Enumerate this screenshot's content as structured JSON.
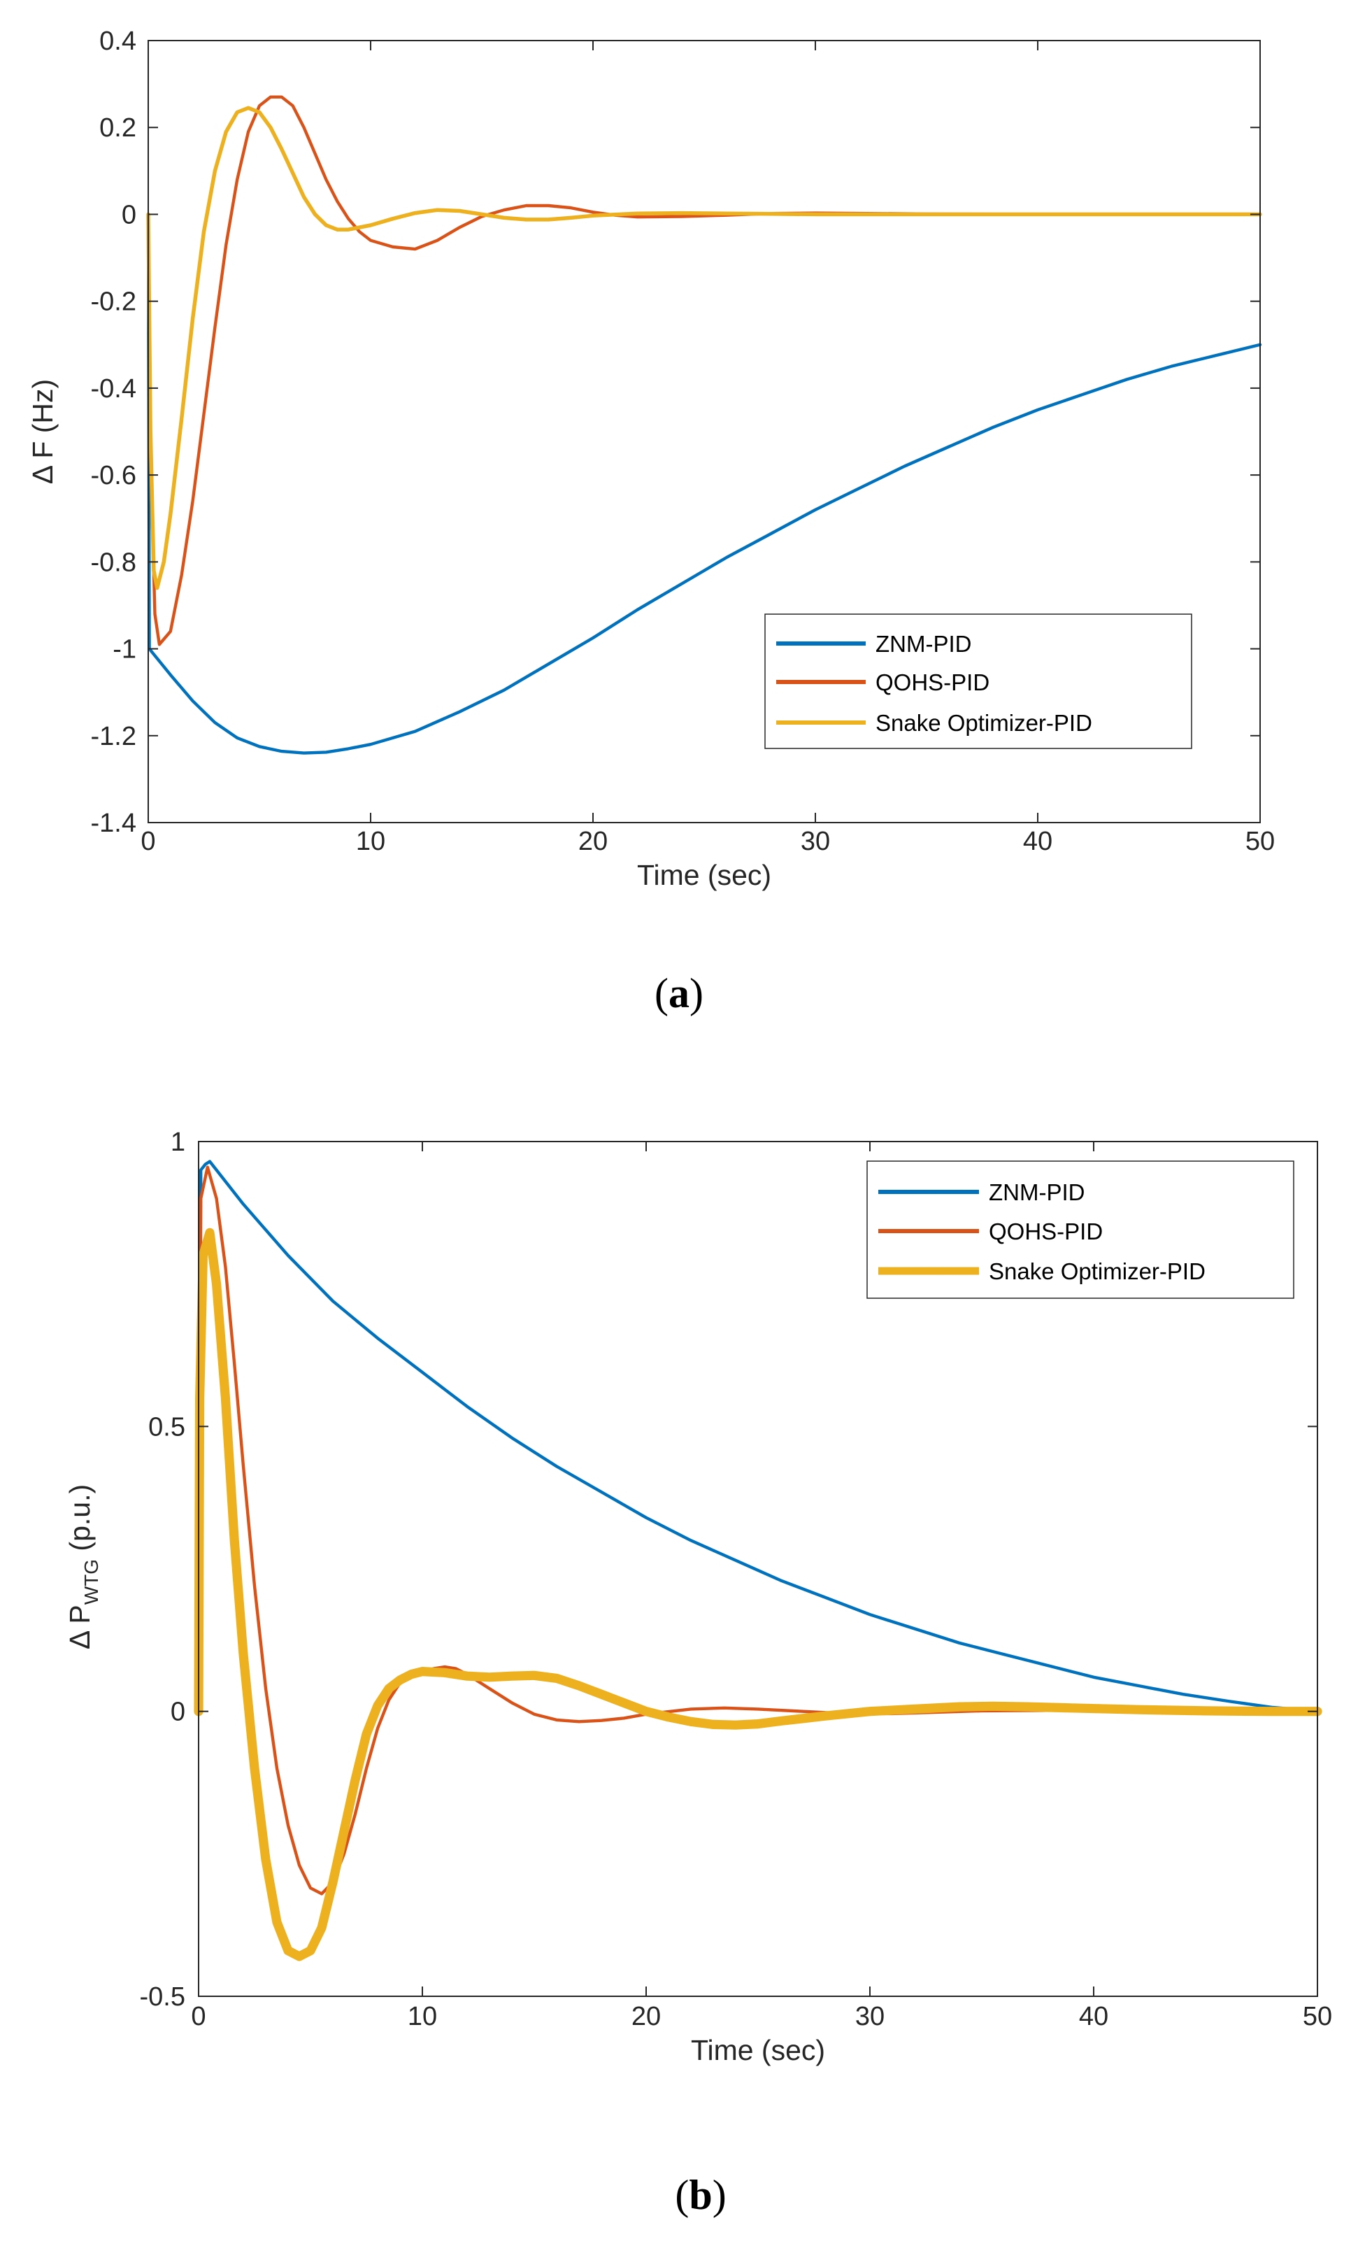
{
  "chart_data": [
    {
      "type": "line",
      "panel_label": "a",
      "xlabel": "Time (sec)",
      "ylabel": "Δ F (Hz)",
      "xlim": [
        0,
        50
      ],
      "ylim": [
        -1.4,
        0.4
      ],
      "xticks": [
        0,
        10,
        20,
        30,
        40,
        50
      ],
      "yticks": [
        -1.4,
        -1.2,
        -1,
        -0.8,
        -0.6,
        -0.4,
        -0.2,
        0,
        0.2,
        0.4
      ],
      "ytick_labels": [
        "-1.4",
        "-1.2",
        "-1",
        "-0.8",
        "-0.6",
        "-0.4",
        "-0.2",
        "0",
        "0.2",
        "0.4"
      ],
      "legend_position": "bottom-right",
      "series": [
        {
          "name": "ZNM-PID",
          "color": "#0072BD",
          "width": 2,
          "x": [
            0,
            0.05,
            1,
            2,
            3,
            4,
            5,
            6,
            7,
            8,
            9,
            10,
            12,
            14,
            16,
            18,
            20,
            22,
            24,
            26,
            28,
            30,
            32,
            34,
            36,
            38,
            40,
            42,
            44,
            46,
            48,
            50
          ],
          "y": [
            0,
            -1.0,
            -1.06,
            -1.12,
            -1.17,
            -1.205,
            -1.225,
            -1.236,
            -1.24,
            -1.238,
            -1.23,
            -1.22,
            -1.19,
            -1.145,
            -1.095,
            -1.035,
            -0.975,
            -0.91,
            -0.85,
            -0.79,
            -0.735,
            -0.68,
            -0.63,
            -0.58,
            -0.535,
            -0.49,
            -0.45,
            -0.415,
            -0.38,
            -0.35,
            -0.325,
            -0.3
          ]
        },
        {
          "name": "QOHS-PID",
          "color": "#D95319",
          "width": 2,
          "x": [
            0,
            0.1,
            0.3,
            0.5,
            1,
            1.5,
            2,
            2.5,
            3,
            3.5,
            4,
            4.5,
            5,
            5.5,
            6,
            6.5,
            7,
            7.5,
            8,
            8.5,
            9,
            9.5,
            10,
            11,
            12,
            13,
            14,
            15,
            16,
            17,
            18,
            19,
            20,
            21,
            22,
            24,
            26,
            28,
            30,
            35,
            40,
            45,
            50
          ],
          "y": [
            0,
            -0.55,
            -0.92,
            -0.99,
            -0.96,
            -0.83,
            -0.66,
            -0.46,
            -0.26,
            -0.07,
            0.08,
            0.19,
            0.25,
            0.27,
            0.27,
            0.25,
            0.2,
            0.14,
            0.08,
            0.03,
            -0.01,
            -0.04,
            -0.06,
            -0.075,
            -0.08,
            -0.06,
            -0.03,
            -0.005,
            0.01,
            0.02,
            0.02,
            0.015,
            0.005,
            -0.002,
            -0.006,
            -0.005,
            -0.002,
            0.002,
            0.003,
            0.001,
            0,
            0,
            0
          ]
        },
        {
          "name": "Snake Optimizer-PID",
          "color": "#EDB120",
          "width": 2.5,
          "x": [
            0,
            0.1,
            0.25,
            0.4,
            0.7,
            1,
            1.5,
            2,
            2.5,
            3,
            3.5,
            4,
            4.5,
            5,
            5.5,
            6,
            6.5,
            7,
            7.5,
            8,
            8.5,
            9,
            9.5,
            10,
            11,
            12,
            13,
            14,
            15,
            16,
            17,
            18,
            19,
            20,
            22,
            24,
            26,
            28,
            30,
            35,
            40,
            45,
            50
          ],
          "y": [
            0,
            -0.5,
            -0.82,
            -0.86,
            -0.8,
            -0.69,
            -0.47,
            -0.24,
            -0.04,
            0.1,
            0.19,
            0.235,
            0.245,
            0.235,
            0.2,
            0.15,
            0.095,
            0.04,
            0.0,
            -0.025,
            -0.035,
            -0.035,
            -0.03,
            -0.025,
            -0.01,
            0.003,
            0.01,
            0.008,
            0.0,
            -0.008,
            -0.012,
            -0.012,
            -0.008,
            -0.003,
            0.002,
            0.003,
            0.002,
            0.001,
            0.0,
            0,
            0,
            0,
            0
          ]
        }
      ]
    },
    {
      "type": "line",
      "panel_label": "b",
      "xlabel": "Time (sec)",
      "ylabel": "Δ P",
      "ylabel_subscript": "WTG",
      "ylabel_suffix": "(p.u.)",
      "xlim": [
        0,
        50
      ],
      "ylim": [
        -0.5,
        1
      ],
      "xticks": [
        0,
        10,
        20,
        30,
        40,
        50
      ],
      "yticks": [
        -0.5,
        0,
        0.5,
        1
      ],
      "ytick_labels": [
        "-0.5",
        "0",
        "0.5",
        "1"
      ],
      "legend_position": "top-right",
      "series": [
        {
          "name": "ZNM-PID",
          "color": "#0072BD",
          "width": 2,
          "x": [
            0,
            0.1,
            0.3,
            0.5,
            1,
            2,
            4,
            6,
            8,
            10,
            12,
            14,
            16,
            18,
            20,
            22,
            24,
            26,
            28,
            30,
            32,
            34,
            36,
            38,
            40,
            42,
            44,
            46,
            48,
            49.5,
            50
          ],
          "y": [
            0,
            0.95,
            0.96,
            0.965,
            0.94,
            0.89,
            0.8,
            0.72,
            0.655,
            0.595,
            0.535,
            0.48,
            0.43,
            0.385,
            0.34,
            0.3,
            0.265,
            0.23,
            0.2,
            0.17,
            0.145,
            0.12,
            0.1,
            0.08,
            0.06,
            0.045,
            0.03,
            0.018,
            0.007,
            0.002,
            0
          ]
        },
        {
          "name": "QOHS-PID",
          "color": "#D95319",
          "width": 2,
          "x": [
            0,
            0.1,
            0.4,
            0.8,
            1.2,
            1.6,
            2,
            2.5,
            3,
            3.5,
            4,
            4.5,
            5,
            5.5,
            6,
            6.5,
            7,
            7.5,
            8,
            8.5,
            9,
            9.5,
            10,
            10.5,
            11,
            11.5,
            12,
            13,
            14,
            15,
            16,
            17,
            18,
            19,
            20,
            22,
            23.5,
            25,
            27,
            29,
            31,
            35,
            40,
            45,
            50
          ],
          "y": [
            0,
            0.9,
            0.955,
            0.9,
            0.78,
            0.61,
            0.43,
            0.22,
            0.04,
            -0.1,
            -0.2,
            -0.27,
            -0.31,
            -0.32,
            -0.3,
            -0.25,
            -0.18,
            -0.1,
            -0.03,
            0.02,
            0.05,
            0.065,
            0.07,
            0.075,
            0.078,
            0.075,
            0.065,
            0.04,
            0.015,
            -0.005,
            -0.015,
            -0.018,
            -0.016,
            -0.012,
            -0.005,
            0.004,
            0.006,
            0.004,
            0.0,
            -0.004,
            -0.004,
            0.001,
            0.002,
            0.001,
            0
          ]
        },
        {
          "name": "Snake Optimizer-PID",
          "color": "#EDB120",
          "width": 6,
          "x": [
            0,
            0.05,
            0.2,
            0.5,
            0.8,
            1.2,
            1.6,
            2,
            2.5,
            3,
            3.5,
            4,
            4.5,
            5,
            5.5,
            6,
            6.5,
            7,
            7.5,
            8,
            8.5,
            9,
            9.5,
            10,
            11,
            12,
            13,
            14,
            15,
            16,
            17,
            18,
            19,
            20,
            21,
            22,
            23,
            24,
            25,
            26,
            28,
            30,
            32,
            34,
            35.5,
            37,
            39,
            42,
            45,
            48,
            50
          ],
          "y": [
            0,
            0.55,
            0.8,
            0.84,
            0.75,
            0.55,
            0.3,
            0.1,
            -0.1,
            -0.26,
            -0.37,
            -0.42,
            -0.43,
            -0.42,
            -0.38,
            -0.3,
            -0.21,
            -0.12,
            -0.04,
            0.01,
            0.04,
            0.055,
            0.065,
            0.07,
            0.068,
            0.062,
            0.06,
            0.062,
            0.063,
            0.058,
            0.045,
            0.03,
            0.015,
            0.0,
            -0.01,
            -0.018,
            -0.023,
            -0.024,
            -0.022,
            -0.017,
            -0.008,
            0.0,
            0.004,
            0.008,
            0.009,
            0.008,
            0.006,
            0.003,
            0.001,
            0,
            0
          ]
        }
      ]
    }
  ]
}
